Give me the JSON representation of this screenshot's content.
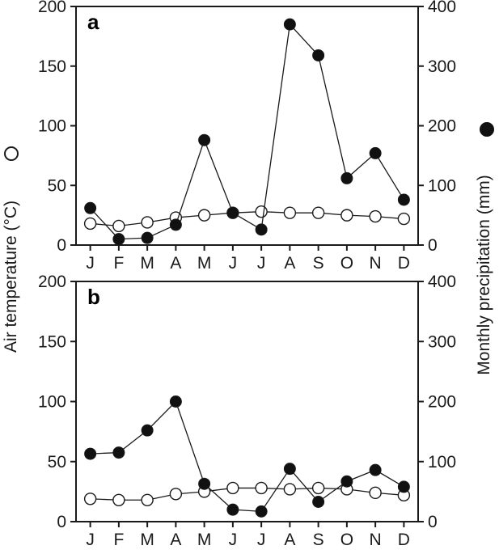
{
  "chart_data": [
    {
      "type": "line",
      "panel_label": "a",
      "categories": [
        "J",
        "F",
        "M",
        "A",
        "M",
        "J",
        "J",
        "A",
        "S",
        "O",
        "N",
        "D"
      ],
      "y_left": {
        "label": "Air temperature (°C)",
        "ylim": [
          0,
          200
        ],
        "ticks": [
          0,
          50,
          100,
          150,
          200
        ]
      },
      "y_right": {
        "label": "Monthly precipitation (mm)",
        "ylim": [
          0,
          400
        ],
        "ticks": [
          0,
          100,
          200,
          300,
          400
        ]
      },
      "series": [
        {
          "marker": "filled-circle",
          "axis": "right",
          "values": [
            62,
            10,
            12,
            34,
            176,
            54,
            26,
            370,
            318,
            112,
            154,
            76
          ]
        },
        {
          "marker": "open-circle",
          "axis": "left",
          "values": [
            18,
            16,
            19,
            23,
            25,
            27,
            28,
            27,
            27,
            25,
            24,
            22
          ]
        }
      ],
      "grid": false
    },
    {
      "type": "line",
      "panel_label": "b",
      "categories": [
        "J",
        "F",
        "M",
        "A",
        "M",
        "J",
        "J",
        "A",
        "S",
        "O",
        "N",
        "D"
      ],
      "y_left": {
        "label": "Air temperature (°C)",
        "ylim": [
          0,
          200
        ],
        "ticks": [
          0,
          50,
          100,
          150,
          200
        ]
      },
      "y_right": {
        "label": "Monthly precipitation (mm)",
        "ylim": [
          0,
          400
        ],
        "ticks": [
          0,
          100,
          200,
          300,
          400
        ]
      },
      "series": [
        {
          "marker": "filled-circle",
          "axis": "right",
          "values": [
            113,
            115,
            152,
            200,
            63,
            20,
            17,
            88,
            33,
            67,
            86,
            58
          ]
        },
        {
          "marker": "open-circle",
          "axis": "left",
          "values": [
            19,
            18,
            18,
            23,
            25,
            28,
            28,
            27,
            28,
            27,
            24,
            22
          ]
        }
      ],
      "grid": false
    }
  ],
  "shared_labels": {
    "y_left": "Air temperature (°C)",
    "y_right": "Monthly precipitation (mm)"
  },
  "colors": {
    "ink": "#1a1a1a",
    "open_fill": "#ffffff",
    "filled_fill": "#111111"
  }
}
